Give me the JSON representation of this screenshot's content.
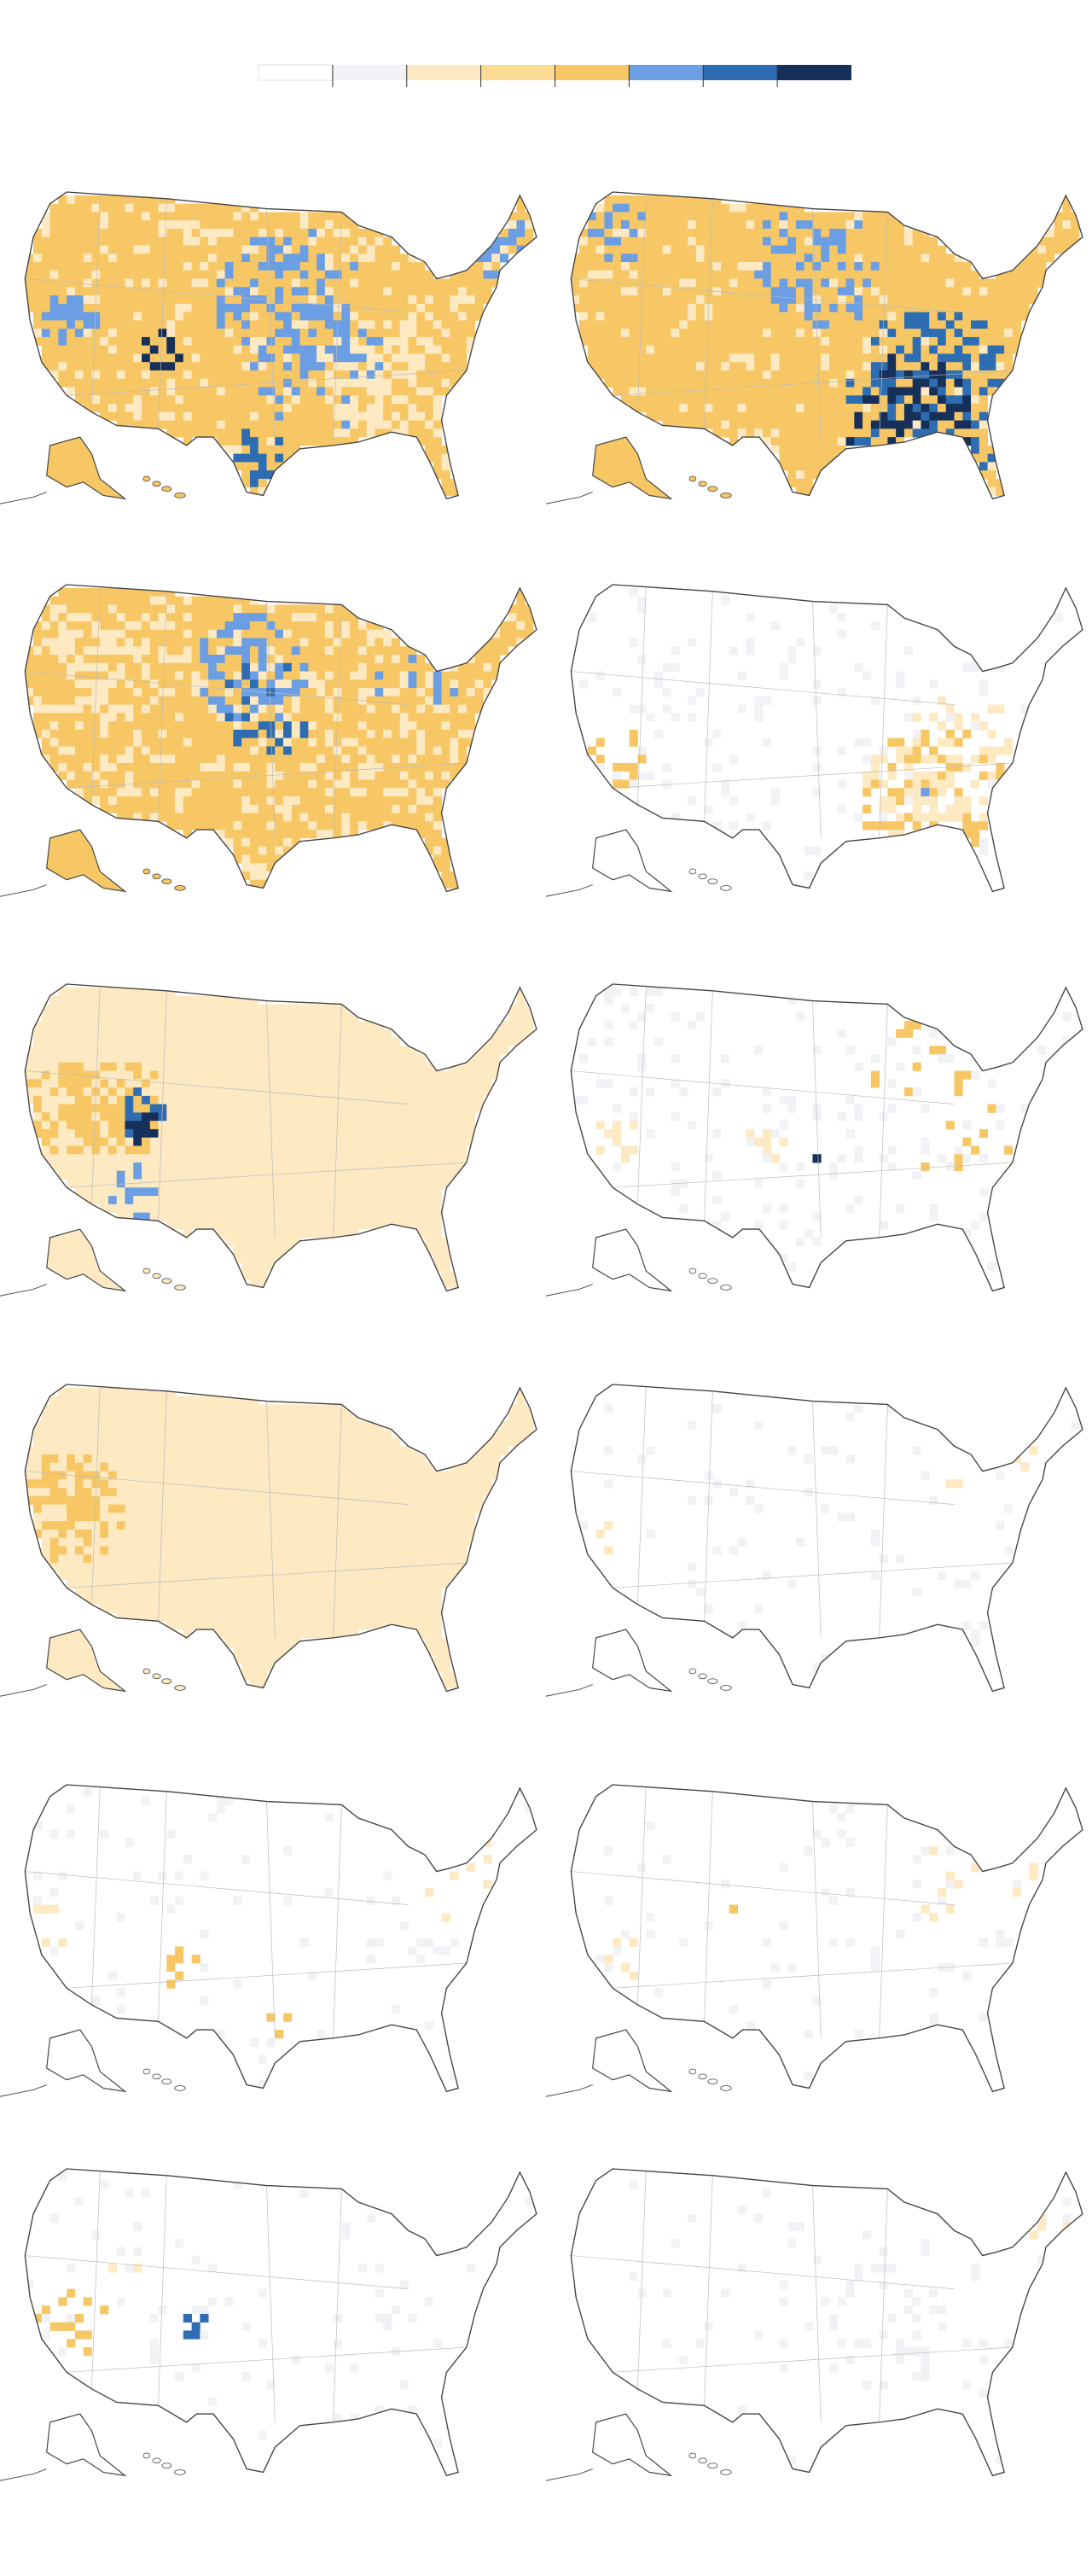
{
  "legend": {
    "colors": [
      "#ffffff",
      "#f1f2f5",
      "#fde9c2",
      "#fcdc92",
      "#f7c765",
      "#6b9ee2",
      "#2e6db2",
      "#17305a"
    ]
  }
}
